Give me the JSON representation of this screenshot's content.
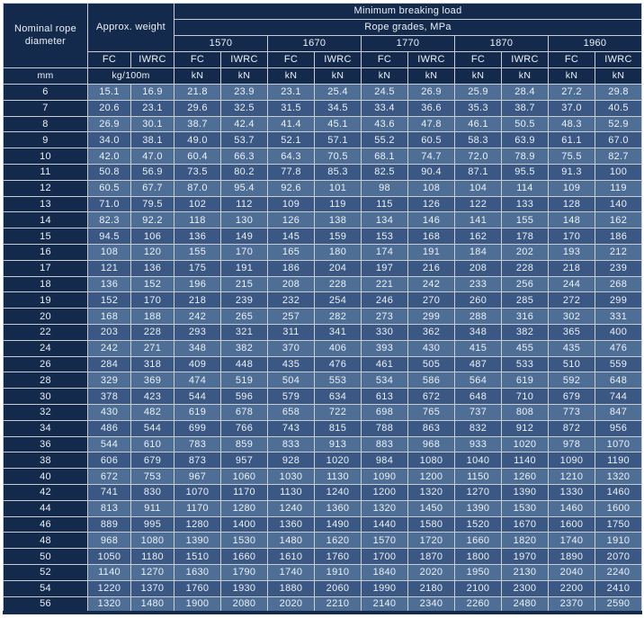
{
  "colors": {
    "navy_header": "#142A4C",
    "row_light": "#4E6E96",
    "row_dark": "#3A5883",
    "grid_line": "#C9CDD1",
    "text": "#EDF1F6",
    "page_background": "#FFFFFF"
  },
  "table": {
    "header": {
      "nominal_diameter": "Nominal rope diameter",
      "approx_weight": "Approx. weight",
      "min_breaking_load": "Minimum breaking load",
      "rope_grades": "Rope grades, MPa",
      "grades": [
        "1570",
        "1670",
        "1770",
        "1870",
        "1960"
      ],
      "core_fc": "FC",
      "core_iwrc": "IWRC",
      "units": {
        "diameter": "mm",
        "weight": "kg/100m",
        "load": "kN"
      }
    },
    "rows": [
      [
        "6",
        "15.1",
        "16.9",
        "21.8",
        "23.9",
        "23.1",
        "25.4",
        "24.5",
        "26.9",
        "25.9",
        "28.4",
        "27.2",
        "29.8"
      ],
      [
        "7",
        "20.6",
        "23.1",
        "29.6",
        "32.5",
        "31.5",
        "34.5",
        "33.4",
        "36.6",
        "35.3",
        "38.7",
        "37.0",
        "40.5"
      ],
      [
        "8",
        "26.9",
        "30.1",
        "38.7",
        "42.4",
        "41.4",
        "45.1",
        "43.6",
        "47.8",
        "46.1",
        "50.5",
        "48.3",
        "52.9"
      ],
      [
        "9",
        "34.0",
        "38.1",
        "49.0",
        "53.7",
        "52.1",
        "57.1",
        "55.2",
        "60.5",
        "58.3",
        "63.9",
        "61.1",
        "67.0"
      ],
      [
        "10",
        "42.0",
        "47.0",
        "60.4",
        "66.3",
        "64.3",
        "70.5",
        "68.1",
        "74.7",
        "72.0",
        "78.9",
        "75.5",
        "82.7"
      ],
      [
        "11",
        "50.8",
        "56.9",
        "73.5",
        "80.2",
        "77.8",
        "85.3",
        "82.5",
        "90.4",
        "87.1",
        "95.5",
        "91.3",
        "100"
      ],
      [
        "12",
        "60.5",
        "67.7",
        "87.0",
        "95.4",
        "92.6",
        "101",
        "98",
        "108",
        "104",
        "114",
        "109",
        "119"
      ],
      [
        "13",
        "71.0",
        "79.5",
        "102",
        "112",
        "109",
        "119",
        "115",
        "126",
        "122",
        "133",
        "128",
        "140"
      ],
      [
        "14",
        "82.3",
        "92.2",
        "118",
        "130",
        "126",
        "138",
        "134",
        "146",
        "141",
        "155",
        "148",
        "162"
      ],
      [
        "15",
        "94.5",
        "106",
        "136",
        "149",
        "145",
        "159",
        "153",
        "168",
        "162",
        "178",
        "170",
        "186"
      ],
      [
        "16",
        "108",
        "120",
        "155",
        "170",
        "165",
        "180",
        "174",
        "191",
        "184",
        "202",
        "193",
        "212"
      ],
      [
        "17",
        "121",
        "136",
        "175",
        "191",
        "186",
        "204",
        "197",
        "216",
        "208",
        "228",
        "218",
        "239"
      ],
      [
        "18",
        "136",
        "152",
        "196",
        "215",
        "208",
        "228",
        "221",
        "242",
        "233",
        "256",
        "244",
        "268"
      ],
      [
        "19",
        "152",
        "170",
        "218",
        "239",
        "232",
        "254",
        "246",
        "270",
        "260",
        "285",
        "272",
        "299"
      ],
      [
        "20",
        "168",
        "188",
        "242",
        "265",
        "257",
        "282",
        "273",
        "299",
        "288",
        "316",
        "302",
        "331"
      ],
      [
        "22",
        "203",
        "228",
        "293",
        "321",
        "311",
        "341",
        "330",
        "362",
        "348",
        "382",
        "365",
        "400"
      ],
      [
        "24",
        "242",
        "271",
        "348",
        "382",
        "370",
        "406",
        "393",
        "430",
        "415",
        "455",
        "435",
        "476"
      ],
      [
        "26",
        "284",
        "318",
        "409",
        "448",
        "435",
        "476",
        "461",
        "505",
        "487",
        "533",
        "510",
        "559"
      ],
      [
        "28",
        "329",
        "369",
        "474",
        "519",
        "504",
        "553",
        "534",
        "586",
        "564",
        "619",
        "592",
        "648"
      ],
      [
        "30",
        "378",
        "423",
        "544",
        "596",
        "579",
        "634",
        "613",
        "672",
        "648",
        "710",
        "679",
        "744"
      ],
      [
        "32",
        "430",
        "482",
        "619",
        "678",
        "658",
        "722",
        "698",
        "765",
        "737",
        "808",
        "773",
        "847"
      ],
      [
        "34",
        "486",
        "544",
        "699",
        "766",
        "743",
        "815",
        "788",
        "863",
        "832",
        "912",
        "872",
        "956"
      ],
      [
        "36",
        "544",
        "610",
        "783",
        "859",
        "833",
        "913",
        "883",
        "968",
        "933",
        "1020",
        "978",
        "1070"
      ],
      [
        "38",
        "606",
        "679",
        "873",
        "957",
        "928",
        "1020",
        "984",
        "1080",
        "1040",
        "1140",
        "1090",
        "1190"
      ],
      [
        "40",
        "672",
        "753",
        "967",
        "1060",
        "1030",
        "1130",
        "1090",
        "1200",
        "1150",
        "1260",
        "1210",
        "1320"
      ],
      [
        "42",
        "741",
        "830",
        "1070",
        "1170",
        "1130",
        "1240",
        "1200",
        "1320",
        "1270",
        "1390",
        "1330",
        "1460"
      ],
      [
        "44",
        "813",
        "911",
        "1170",
        "1280",
        "1240",
        "1360",
        "1320",
        "1450",
        "1390",
        "1530",
        "1460",
        "1600"
      ],
      [
        "46",
        "889",
        "995",
        "1280",
        "1400",
        "1360",
        "1490",
        "1440",
        "1580",
        "1520",
        "1670",
        "1600",
        "1750"
      ],
      [
        "48",
        "968",
        "1080",
        "1390",
        "1530",
        "1480",
        "1620",
        "1570",
        "1720",
        "1660",
        "1820",
        "1740",
        "1910"
      ],
      [
        "50",
        "1050",
        "1180",
        "1510",
        "1660",
        "1610",
        "1760",
        "1700",
        "1870",
        "1800",
        "1970",
        "1890",
        "2070"
      ],
      [
        "52",
        "1140",
        "1270",
        "1630",
        "1790",
        "1740",
        "1910",
        "1840",
        "2020",
        "1950",
        "2130",
        "2040",
        "2240"
      ],
      [
        "54",
        "1220",
        "1370",
        "1760",
        "1930",
        "1880",
        "2060",
        "1990",
        "2180",
        "2100",
        "2300",
        "2200",
        "2410"
      ],
      [
        "56",
        "1320",
        "1480",
        "1900",
        "2080",
        "2020",
        "2210",
        "2140",
        "2340",
        "2260",
        "2480",
        "2370",
        "2590"
      ]
    ]
  }
}
